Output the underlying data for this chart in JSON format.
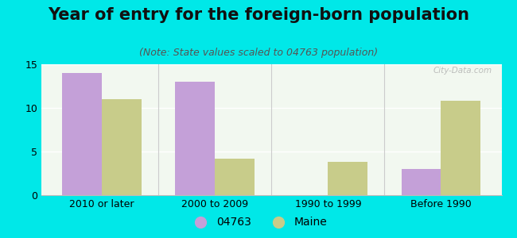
{
  "title": "Year of entry for the foreign-born population",
  "subtitle": "(Note: State values scaled to 04763 population)",
  "categories": [
    "2010 or later",
    "2000 to 2009",
    "1990 to 1999",
    "Before 1990"
  ],
  "series": [
    {
      "label": "04763",
      "values": [
        14.0,
        13.0,
        0.0,
        3.0
      ],
      "color": "#c4a0d8"
    },
    {
      "label": "Maine",
      "values": [
        11.0,
        4.2,
        3.8,
        10.8
      ],
      "color": "#c8cc8a"
    }
  ],
  "ylim": [
    0,
    15
  ],
  "yticks": [
    0,
    5,
    10,
    15
  ],
  "background_color": "#00e8e8",
  "plot_bg_color": "#f2f8f0",
  "bar_width": 0.35,
  "title_fontsize": 15,
  "subtitle_fontsize": 9,
  "tick_fontsize": 9,
  "legend_fontsize": 10,
  "watermark": "City-Data.com"
}
